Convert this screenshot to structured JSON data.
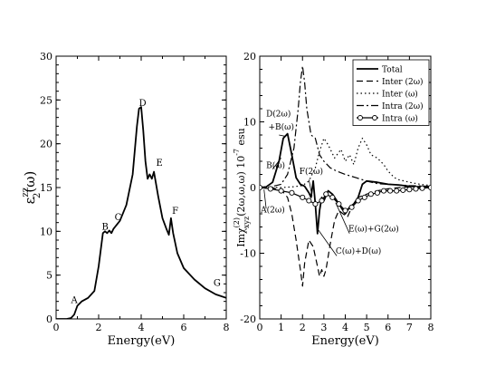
{
  "chart_data": [
    {
      "type": "line",
      "xlabel": "Energy(eV)",
      "ylabel": "ε_2^zz(ω)",
      "ylabel_main": "ε",
      "ylabel_sup": "zz",
      "ylabel_sub": "2",
      "ylabel_tail": "(ω)",
      "xlim": [
        0,
        8
      ],
      "ylim": [
        0,
        30
      ],
      "xticks": [
        0,
        2,
        4,
        6,
        8
      ],
      "yticks": [
        0,
        5,
        10,
        15,
        20,
        25,
        30
      ],
      "grid": false,
      "series": [
        {
          "x": [
            0,
            0.5,
            0.7,
            0.85,
            1.0,
            1.2,
            1.5,
            1.8,
            2.0,
            2.2,
            2.3,
            2.4,
            2.5,
            2.6,
            2.7,
            3.0,
            3.3,
            3.6,
            3.8,
            3.9,
            4.0,
            4.1,
            4.2,
            4.3,
            4.4,
            4.5,
            4.6,
            4.8,
            5.0,
            5.2,
            5.3,
            5.4,
            5.5,
            5.7,
            6.0,
            6.5,
            7.0,
            7.5,
            8.0
          ],
          "y": [
            0,
            0,
            0.1,
            0.5,
            1.5,
            2.0,
            2.4,
            3.2,
            6.0,
            9.8,
            10.0,
            9.8,
            10.1,
            9.8,
            10.3,
            11.2,
            13.0,
            16.5,
            22.0,
            24.0,
            24.2,
            21.5,
            18.0,
            16.0,
            16.5,
            16.0,
            16.8,
            14.0,
            11.5,
            10.2,
            9.6,
            11.5,
            9.8,
            7.5,
            5.8,
            4.5,
            3.5,
            2.8,
            2.4
          ]
        }
      ],
      "annotations": [
        {
          "text": "A",
          "x": 0.7,
          "y": 1.8
        },
        {
          "text": "B",
          "x": 2.15,
          "y": 10.2
        },
        {
          "text": "C",
          "x": 2.75,
          "y": 11.3
        },
        {
          "text": "D",
          "x": 3.9,
          "y": 24.3
        },
        {
          "text": "E",
          "x": 4.7,
          "y": 17.5
        },
        {
          "text": "F",
          "x": 5.45,
          "y": 12.0
        },
        {
          "text": "G",
          "x": 7.4,
          "y": 3.8
        }
      ]
    },
    {
      "type": "line",
      "xlabel": "Energy(eV)",
      "ylabel": "Imχ^(2)_xyz(2ω,ω,ω) 10^-7 esu",
      "ylabel_main": "Imχ",
      "ylabel_sup": "(2)",
      "ylabel_sub": "xyz",
      "ylabel_tail": "(2ω,ω,ω) 10",
      "ylabel_exp": "-7",
      "ylabel_unit": " esu",
      "xlim": [
        0,
        8
      ],
      "ylim": [
        -20,
        20
      ],
      "xticks": [
        0,
        1,
        2,
        3,
        4,
        5,
        6,
        7,
        8
      ],
      "yticks": [
        -20,
        -10,
        0,
        10,
        20
      ],
      "grid": false,
      "legend_position": "top-right",
      "series": [
        {
          "name": "Total",
          "style": "solid",
          "x": [
            0,
            0.3,
            0.6,
            0.9,
            1.1,
            1.3,
            1.5,
            1.7,
            1.9,
            2.1,
            2.3,
            2.4,
            2.5,
            2.6,
            2.7,
            2.8,
            2.9,
            3.0,
            3.2,
            3.4,
            3.6,
            3.8,
            4.0,
            4.2,
            4.4,
            4.6,
            4.8,
            5.0,
            5.5,
            6.0,
            6.5,
            7.0,
            7.5,
            8.0
          ],
          "y": [
            0,
            0.1,
            0.8,
            4.0,
            7.5,
            8.2,
            5.0,
            1.5,
            0.5,
            0.2,
            -0.8,
            -1.5,
            1.0,
            -2.5,
            -7.0,
            -3.5,
            -1.5,
            -2.0,
            -0.5,
            -1.0,
            -2.0,
            -3.0,
            -4.0,
            -3.0,
            -2.5,
            -1.5,
            0.5,
            1.0,
            0.8,
            0.5,
            0.4,
            0.2,
            0.1,
            0.0
          ]
        },
        {
          "name": "Inter (2ω)",
          "style": "dashed",
          "x": [
            0,
            0.5,
            1.0,
            1.3,
            1.5,
            1.7,
            1.9,
            2.0,
            2.1,
            2.3,
            2.5,
            2.7,
            2.8,
            2.9,
            3.0,
            3.1,
            3.3,
            3.5,
            3.7,
            3.9,
            4.1,
            4.3,
            4.6,
            5.0,
            5.5,
            6.0,
            6.5,
            7.0,
            7.5,
            8.0
          ],
          "y": [
            0,
            0,
            -0.3,
            -1.5,
            -4.0,
            -8.0,
            -12.5,
            -15.0,
            -11.5,
            -8.0,
            -9.0,
            -12.0,
            -13.5,
            -12.5,
            -13.5,
            -12.5,
            -8.5,
            -5.0,
            -3.5,
            -4.0,
            -4.5,
            -3.0,
            -1.5,
            -1.0,
            -0.5,
            -0.2,
            0.0,
            0.1,
            0.0,
            0.0
          ]
        },
        {
          "name": "Inter (ω)",
          "style": "dotted",
          "x": [
            0,
            0.5,
            1.0,
            1.5,
            2.0,
            2.3,
            2.6,
            2.8,
            3.0,
            3.2,
            3.5,
            3.8,
            4.0,
            4.2,
            4.4,
            4.6,
            4.8,
            5.0,
            5.2,
            5.5,
            5.8,
            6.0,
            6.3,
            6.5,
            7.0,
            7.5,
            8.0
          ],
          "y": [
            0,
            0,
            0,
            0.1,
            0.3,
            1.0,
            3.0,
            5.5,
            7.5,
            6.5,
            4.5,
            5.8,
            4.0,
            5.0,
            3.5,
            6.0,
            7.5,
            6.5,
            5.0,
            4.5,
            3.5,
            2.5,
            1.5,
            1.2,
            0.8,
            0.5,
            0.3
          ]
        },
        {
          "name": "Intra (2ω)",
          "style": "dashdot",
          "x": [
            0,
            0.5,
            1.0,
            1.3,
            1.6,
            1.8,
            1.9,
            2.0,
            2.1,
            2.2,
            2.4,
            2.6,
            2.8,
            3.0,
            3.3,
            3.6,
            4.0,
            4.5,
            5.0,
            5.5,
            6.0,
            7.0,
            8.0
          ],
          "y": [
            0,
            0.1,
            0.5,
            2.0,
            6.0,
            12.0,
            16.0,
            18.5,
            16.0,
            12.0,
            8.0,
            7.5,
            5.0,
            4.0,
            3.0,
            2.5,
            2.0,
            1.5,
            1.0,
            0.6,
            0.5,
            0.3,
            0.2
          ]
        },
        {
          "name": "Intra (ω)",
          "style": "circles",
          "x": [
            0,
            0.5,
            1.0,
            1.5,
            2.0,
            2.3,
            2.6,
            2.9,
            3.1,
            3.4,
            3.7,
            4.0,
            4.3,
            4.6,
            4.9,
            5.2,
            5.5,
            5.8,
            6.1,
            6.4,
            6.7,
            7.0,
            7.3,
            7.6,
            8.0
          ],
          "y": [
            0,
            -0.2,
            -0.5,
            -0.8,
            -1.5,
            -2.0,
            -2.5,
            -2.0,
            -1.0,
            -1.5,
            -2.5,
            -3.5,
            -3.0,
            -2.0,
            -1.5,
            -1.0,
            -0.8,
            -0.5,
            -0.5,
            -0.5,
            -0.4,
            -0.3,
            -0.2,
            -0.1,
            0.0
          ]
        }
      ],
      "annotations": [
        {
          "text": "D(2ω)",
          "x": 0.3,
          "y": 10.8
        },
        {
          "text": "+B(ω)",
          "x": 0.4,
          "y": 8.8
        },
        {
          "text": "B(ω)",
          "x": 0.3,
          "y": 3.0
        },
        {
          "text": "F(2ω)",
          "x": 1.85,
          "y": 2.1
        },
        {
          "text": "A(2ω)",
          "x": 0.05,
          "y": -3.8
        },
        {
          "text": "E(ω)+G(2ω)",
          "x": 4.15,
          "y": -6.7
        },
        {
          "text": "C(ω)+D(ω)",
          "x": 3.55,
          "y": -10.1
        }
      ]
    }
  ]
}
